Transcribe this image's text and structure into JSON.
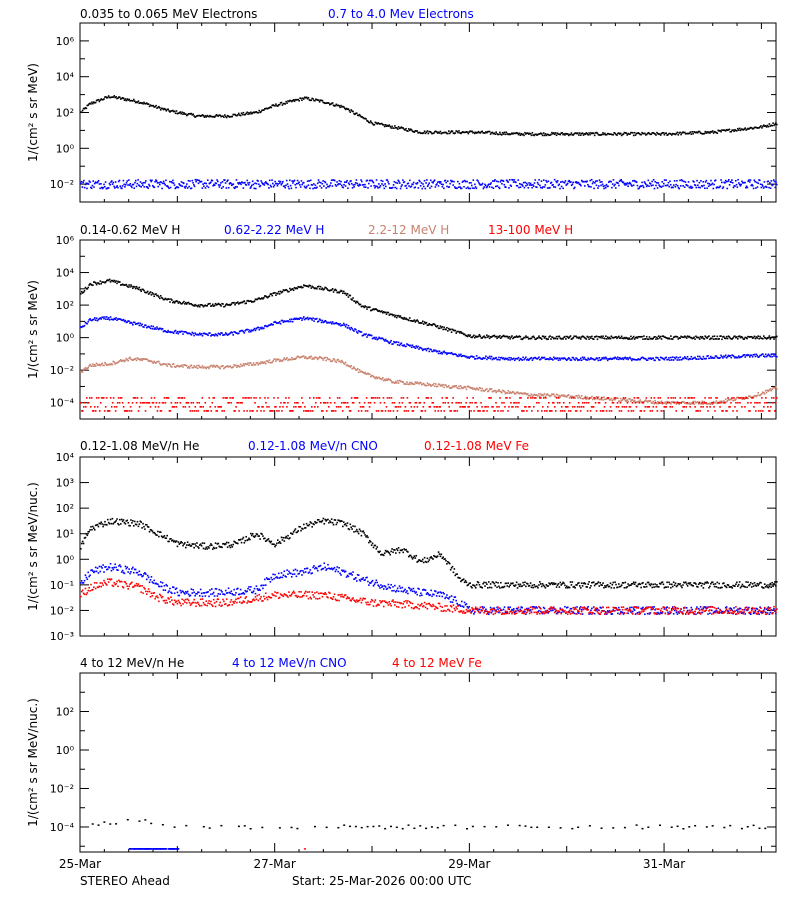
{
  "footer": {
    "spacecraft": "STEREO Ahead",
    "start": "Start: 25-Mar-2026 00:00 UTC"
  },
  "x_axis": {
    "tick_labels": [
      "25-Mar",
      "27-Mar",
      "29-Mar",
      "31-Mar"
    ],
    "tick_days": [
      0,
      2,
      4,
      6
    ],
    "range_days": [
      0,
      7.15
    ]
  },
  "colors": {
    "black": "#000000",
    "blue": "#0000ff",
    "tan": "#c8826e",
    "red": "#ff0000"
  },
  "chart_data": [
    {
      "type": "scatter",
      "ylabel": "1/(cm² s sr MeV)",
      "log_y": true,
      "ylim_exp": [
        -3,
        7
      ],
      "ytick_exponents": [
        -2,
        0,
        2,
        4,
        6
      ],
      "legend": [
        {
          "label": "0.035 to 0.065 MeV Electrons",
          "color": "#000000"
        },
        {
          "label": "0.7 to 4.0 Mev Electrons",
          "color": "#0000ff"
        }
      ],
      "series": [
        {
          "name": "0.035 to 0.065 MeV Electrons",
          "color": "#000000",
          "x_days": [
            0,
            0.1,
            0.3,
            0.6,
            0.9,
            1.2,
            1.5,
            1.8,
            2.0,
            2.3,
            2.5,
            2.7,
            3.0,
            3.5,
            4.0,
            4.5,
            5.0,
            5.5,
            6.0,
            6.5,
            7.0,
            7.15
          ],
          "log10_values": [
            2.0,
            2.5,
            2.9,
            2.6,
            2.1,
            1.8,
            1.8,
            2.0,
            2.4,
            2.8,
            2.6,
            2.3,
            1.4,
            0.9,
            0.9,
            0.8,
            0.8,
            0.8,
            0.8,
            0.9,
            1.2,
            1.4
          ],
          "noise": 0.08,
          "style": "line-dots"
        },
        {
          "name": "0.7 to 4.0 Mev Electrons",
          "color": "#0000ff",
          "x_days": [
            0,
            1,
            2,
            3,
            4,
            5,
            6,
            7.15
          ],
          "log10_values": [
            -2.0,
            -2.0,
            -2.0,
            -2.0,
            -2.0,
            -2.0,
            -2.0,
            -2.0
          ],
          "noise": 0.25,
          "style": "band"
        }
      ]
    },
    {
      "type": "scatter",
      "ylabel": "1/(cm² s sr MeV)",
      "log_y": true,
      "ylim_exp": [
        -5,
        6
      ],
      "ytick_exponents": [
        -4,
        -2,
        0,
        2,
        4,
        6
      ],
      "legend": [
        {
          "label": "0.14-0.62 MeV H",
          "color": "#000000"
        },
        {
          "label": "0.62-2.22 MeV H",
          "color": "#0000ff"
        },
        {
          "label": "2.2-12 MeV H",
          "color": "#c8826e"
        },
        {
          "label": "13-100 MeV H",
          "color": "#ff0000"
        }
      ],
      "series": [
        {
          "name": "0.14-0.62 MeV H",
          "color": "#000000",
          "x_days": [
            0,
            0.1,
            0.3,
            0.6,
            0.9,
            1.2,
            1.5,
            1.8,
            2.0,
            2.3,
            2.5,
            2.7,
            2.9,
            3.2,
            3.6,
            4.0,
            4.5,
            5.0,
            5.5,
            6.0,
            6.5,
            7.0,
            7.15
          ],
          "log10_values": [
            2.7,
            3.3,
            3.5,
            3.0,
            2.3,
            2.0,
            2.0,
            2.3,
            2.7,
            3.2,
            3.0,
            2.8,
            1.9,
            1.4,
            0.8,
            0.1,
            0.0,
            0.0,
            0.0,
            0.0,
            0.0,
            0.0,
            0.0
          ],
          "noise": 0.1,
          "style": "line-dots"
        },
        {
          "name": "0.62-2.22 MeV H",
          "color": "#0000ff",
          "x_days": [
            0,
            0.1,
            0.3,
            0.6,
            0.9,
            1.2,
            1.5,
            1.8,
            2.0,
            2.3,
            2.5,
            2.7,
            2.9,
            3.2,
            3.6,
            4.0,
            4.5,
            5.0,
            5.5,
            6.0,
            6.5,
            7.0,
            7.15
          ],
          "log10_values": [
            0.6,
            1.1,
            1.2,
            0.8,
            0.4,
            0.2,
            0.2,
            0.5,
            0.9,
            1.2,
            1.0,
            0.8,
            0.2,
            -0.3,
            -0.8,
            -1.2,
            -1.3,
            -1.3,
            -1.3,
            -1.3,
            -1.2,
            -1.1,
            -1.1
          ],
          "noise": 0.1,
          "style": "line-dots"
        },
        {
          "name": "2.2-12 MeV H",
          "color": "#c8826e",
          "x_days": [
            0,
            0.1,
            0.3,
            0.5,
            0.7,
            0.9,
            1.2,
            1.5,
            1.8,
            2.0,
            2.3,
            2.5,
            2.7,
            2.9,
            3.2,
            3.6,
            4.0,
            4.3,
            4.6,
            5.0,
            5.5,
            6.0,
            6.5,
            6.9,
            7.15
          ],
          "log10_values": [
            -2.1,
            -1.7,
            -1.6,
            -1.3,
            -1.4,
            -1.7,
            -1.8,
            -1.8,
            -1.6,
            -1.4,
            -1.2,
            -1.3,
            -1.5,
            -2.2,
            -2.7,
            -2.9,
            -3.1,
            -3.3,
            -3.5,
            -3.6,
            -3.8,
            -4.0,
            -4.0,
            -3.6,
            -3.1
          ],
          "noise": 0.1,
          "style": "line-dots"
        },
        {
          "name": "13-100 MeV H",
          "color": "#ff0000",
          "x_days": [
            0,
            1,
            2,
            3,
            4,
            5,
            6,
            7.15
          ],
          "log10_values": [
            -4.0,
            -4.0,
            -4.0,
            -4.0,
            -4.0,
            -4.0,
            -4.0,
            -4.0
          ],
          "noise": 0.35,
          "style": "rows"
        }
      ]
    },
    {
      "type": "scatter",
      "ylabel": "1/(cm² s sr MeV/nuc.)",
      "log_y": true,
      "ylim_exp": [
        -3,
        4
      ],
      "ytick_exponents": [
        -3,
        -2,
        -1,
        0,
        1,
        2,
        3,
        4
      ],
      "legend": [
        {
          "label": "0.12-1.08 MeV/n He",
          "color": "#000000"
        },
        {
          "label": "0.12-1.08 MeV/n CNO",
          "color": "#0000ff"
        },
        {
          "label": "0.12-1.08 MeV Fe",
          "color": "#ff0000"
        }
      ],
      "series": [
        {
          "name": "0.12-1.08 MeV/n He",
          "color": "#000000",
          "x_days": [
            0,
            0.1,
            0.3,
            0.6,
            0.8,
            1.0,
            1.3,
            1.6,
            1.8,
            2.0,
            2.3,
            2.5,
            2.7,
            2.9,
            3.1,
            3.3,
            3.5,
            3.7,
            3.9,
            4.0,
            4.5,
            5.0,
            5.5,
            6.0,
            6.5,
            7.0,
            7.15
          ],
          "log10_values": [
            0.5,
            1.2,
            1.5,
            1.4,
            1.0,
            0.6,
            0.5,
            0.6,
            1.0,
            0.6,
            1.3,
            1.5,
            1.4,
            1.0,
            0.2,
            0.4,
            -0.1,
            0.2,
            -0.8,
            -1.0,
            -1.0,
            -1.0,
            -1.0,
            -1.0,
            -1.0,
            -1.0,
            -1.0
          ],
          "noise": 0.12,
          "style": "line-dots"
        },
        {
          "name": "0.12-1.08 MeV/n CNO",
          "color": "#0000ff",
          "x_days": [
            0,
            0.1,
            0.3,
            0.6,
            0.8,
            1.0,
            1.4,
            1.8,
            2.0,
            2.3,
            2.5,
            2.7,
            2.9,
            3.1,
            3.3,
            3.5,
            3.7,
            3.9,
            4.0,
            5.0,
            6.0,
            7.15
          ],
          "log10_values": [
            -1.0,
            -0.5,
            -0.3,
            -0.5,
            -1.0,
            -1.3,
            -1.3,
            -1.2,
            -0.6,
            -0.5,
            -0.3,
            -0.5,
            -0.8,
            -1.0,
            -1.2,
            -1.3,
            -1.4,
            -1.7,
            -2.0,
            -2.0,
            -2.0,
            -2.0
          ],
          "noise": 0.15,
          "style": "line-dots"
        },
        {
          "name": "0.12-1.08 MeV Fe",
          "color": "#ff0000",
          "x_days": [
            0,
            0.1,
            0.3,
            0.6,
            0.8,
            1.0,
            1.5,
            2.0,
            2.5,
            3.0,
            3.5,
            4.0,
            5.0,
            6.0,
            7.15
          ],
          "log10_values": [
            -1.4,
            -1.1,
            -0.9,
            -1.1,
            -1.5,
            -1.7,
            -1.7,
            -1.4,
            -1.4,
            -1.7,
            -1.8,
            -2.0,
            -2.0,
            -2.0,
            -2.0
          ],
          "noise": 0.15,
          "style": "line-dots"
        }
      ]
    },
    {
      "type": "scatter",
      "ylabel": "1/(cm² s sr MeV/nuc.)",
      "log_y": true,
      "ylim_exp": [
        -5.3,
        4
      ],
      "ytick_exponents": [
        -4,
        -2,
        0,
        2
      ],
      "legend": [
        {
          "label": "4 to 12 MeV/n He",
          "color": "#000000"
        },
        {
          "label": "4 to 12 MeV/n CNO",
          "color": "#0000ff"
        },
        {
          "label": "4 to 12 MeV Fe",
          "color": "#ff0000"
        }
      ],
      "series": [
        {
          "name": "4 to 12 MeV/n He",
          "color": "#000000",
          "x_days": [
            0,
            0.3,
            0.5,
            0.8,
            1.0,
            2.0,
            3.0,
            4.0,
            5.0,
            6.0,
            7.15
          ],
          "log10_values": [
            -4.0,
            -3.8,
            -3.6,
            -3.8,
            -4.0,
            -4.0,
            -4.0,
            -4.0,
            -4.0,
            -4.0,
            -4.0
          ],
          "noise": 0.1,
          "style": "sparse"
        },
        {
          "name": "4 to 12 MeV/n CNO",
          "color": "#0000ff",
          "x_days": [
            0.5,
            1.0
          ],
          "log10_values": [
            -5.1,
            -5.1
          ],
          "noise": 0.0,
          "style": "sparse"
        },
        {
          "name": "4 to 12 MeV Fe",
          "color": "#ff0000",
          "x_days": [
            2.3
          ],
          "log10_values": [
            -5.1
          ],
          "noise": 0.0,
          "style": "sparse"
        }
      ]
    }
  ]
}
